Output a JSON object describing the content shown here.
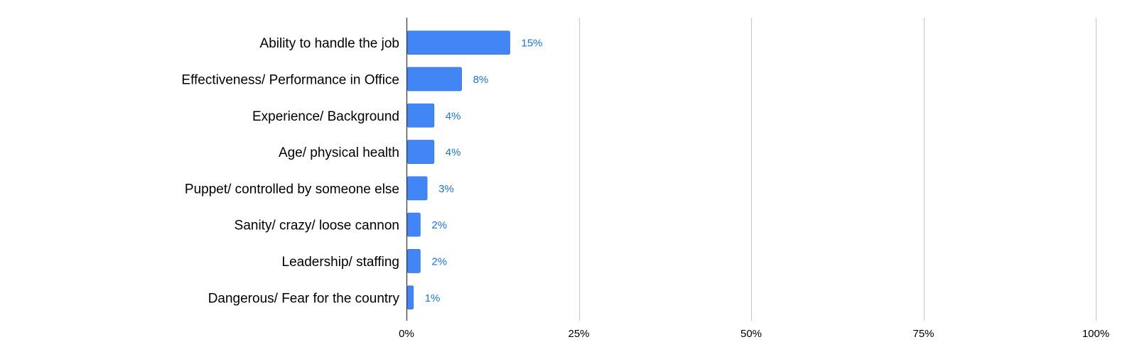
{
  "chart_data": {
    "type": "bar",
    "orientation": "horizontal",
    "categories": [
      "Ability to handle the job",
      "Effectiveness/ Performance in Office",
      "Experience/ Background",
      "Age/ physical health",
      "Puppet/ controlled by someone else",
      "Sanity/ crazy/ loose cannon",
      "Leadership/ staffing",
      "Dangerous/ Fear for the country"
    ],
    "values": [
      15,
      8,
      4,
      4,
      3,
      2,
      2,
      1
    ],
    "value_labels": [
      "15%",
      "8%",
      "4%",
      "4%",
      "3%",
      "2%",
      "2%",
      "1%"
    ],
    "xlim": [
      0,
      100
    ],
    "x_ticks": [
      0,
      25,
      50,
      75,
      100
    ],
    "x_tick_labels": [
      "0%",
      "25%",
      "50%",
      "75%",
      "100%"
    ],
    "grid": true,
    "legend": "none",
    "colors": {
      "bar": "#4285F4",
      "bar_edge": "#3b78e0",
      "value_label": "#1a73e8",
      "grid": "#cccccc",
      "axis": "#333333"
    }
  }
}
